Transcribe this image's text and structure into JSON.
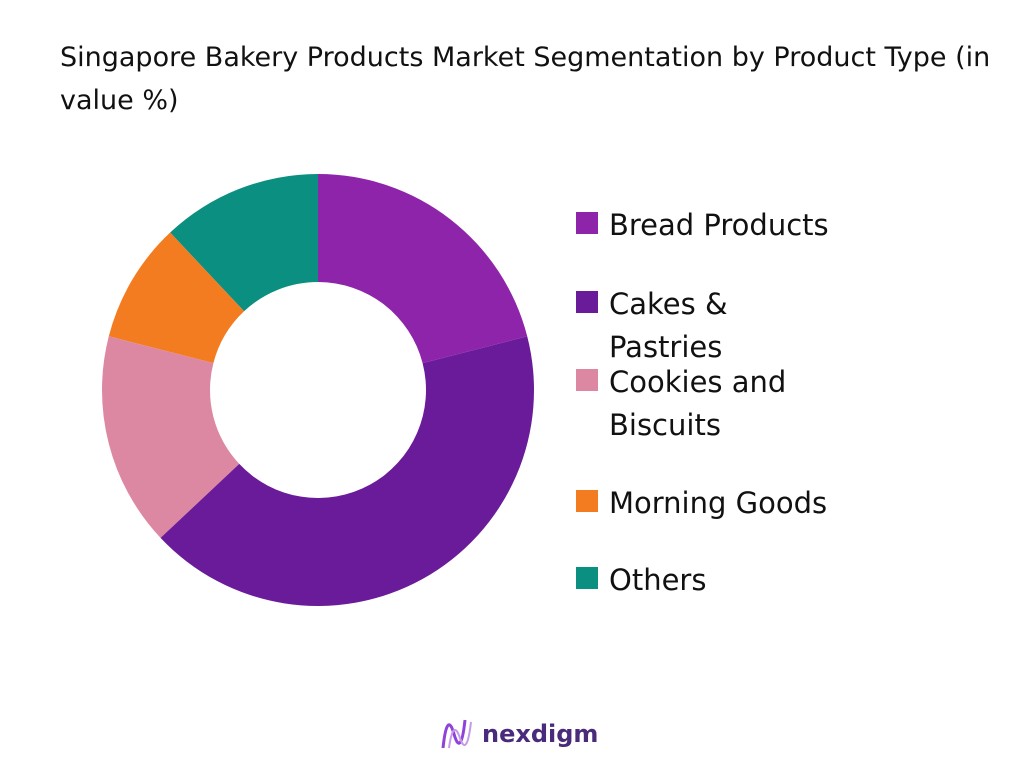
{
  "chart_data": {
    "type": "pie",
    "title": "Singapore Bakery Products Market Segmentation by Product Type (in value %)",
    "categories": [
      "Bread Products",
      "Cakes & Pastries",
      "Cookies and Biscuits",
      "Morning Goods",
      "Others"
    ],
    "values": [
      21,
      42,
      16,
      9,
      12
    ],
    "colors": [
      "#8e24aa",
      "#6a1b9a",
      "#dd88a3",
      "#f47c20",
      "#0b8f80"
    ],
    "legend": "right"
  },
  "logo": "nexdigm"
}
